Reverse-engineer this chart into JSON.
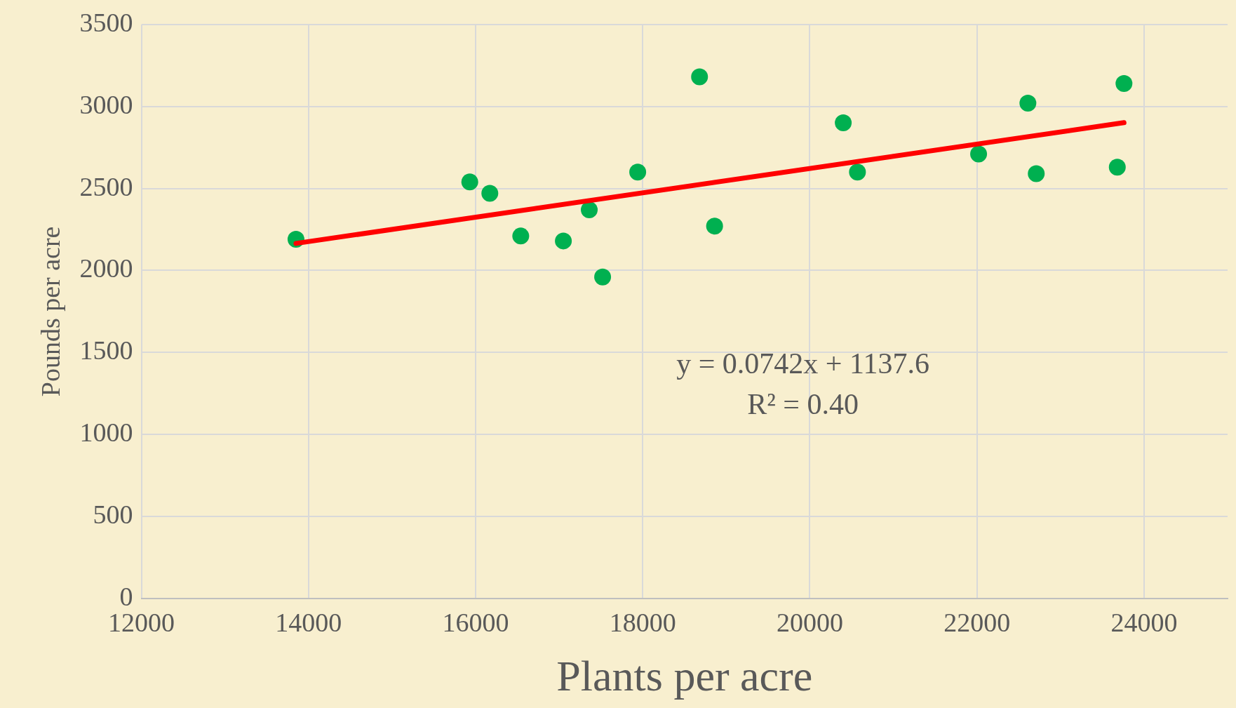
{
  "chart_data": {
    "type": "scatter",
    "xlabel": "Plants per acre",
    "ylabel": "Pounds per acre",
    "series": [
      {
        "color": "#00b050",
        "x": [
          13850,
          15930,
          16170,
          16540,
          17050,
          17360,
          17520,
          17940,
          18680,
          18860,
          20400,
          20570,
          22020,
          22610,
          22710,
          23680,
          23760
        ],
        "values": [
          2190,
          2540,
          2470,
          2210,
          2180,
          2370,
          1960,
          2600,
          3180,
          2270,
          2900,
          2600,
          2710,
          3020,
          2590,
          2630,
          3140
        ]
      },
      {
        "type": "line",
        "marker": "none",
        "color": "#ff0000",
        "x": [
          13850,
          23760
        ],
        "values": [
          2165,
          2901
        ]
      }
    ],
    "annotations": [
      "y = 0.0742x + 1137.6",
      "R² = 0.40"
    ],
    "xlim": [
      12000,
      25000
    ],
    "xticks": [
      12000,
      14000,
      16000,
      18000,
      20000,
      22000,
      24000
    ],
    "ylim": [
      0,
      3500
    ],
    "yticks": [
      0,
      500,
      1000,
      1500,
      2000,
      2500,
      3000,
      3500
    ],
    "grid": true,
    "legend": false,
    "marker": "circle",
    "line_style": "solid"
  }
}
